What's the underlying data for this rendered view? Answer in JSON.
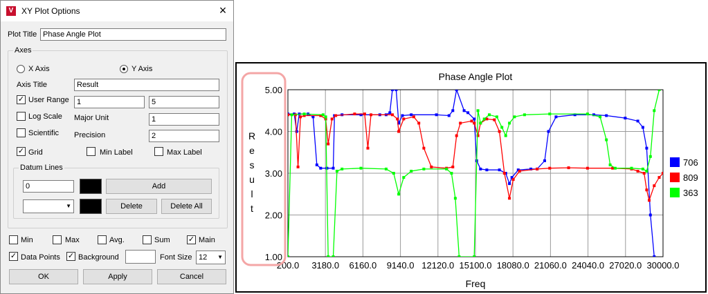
{
  "dialog": {
    "title": "XY Plot Options",
    "app_icon": "V",
    "close_icon": "×",
    "plot_title_label": "Plot Title",
    "plot_title_value": "Phase Angle Plot",
    "axes": {
      "legend": "Axes",
      "x_axis_label": "X Axis",
      "y_axis_label": "Y Axis",
      "selected_axis": "Y Axis",
      "axis_title_label": "Axis Title",
      "axis_title_value": "Result",
      "user_range_label": "User Range",
      "user_range_checked": true,
      "range_min": "1",
      "range_max": "5",
      "log_scale_label": "Log Scale",
      "log_scale_checked": false,
      "major_unit_label": "Major Unit",
      "major_unit_value": "1",
      "scientific_label": "Scientific",
      "scientific_checked": false,
      "precision_label": "Precision",
      "precision_value": "2",
      "grid_label": "Grid",
      "grid_checked": true,
      "min_label_label": "Min Label",
      "min_label_checked": false,
      "max_label_label": "Max Label",
      "max_label_checked": false,
      "datum": {
        "legend": "Datum Lines",
        "value": "0",
        "dropdown_value": "",
        "add_label": "Add",
        "delete_label": "Delete",
        "delete_all_label": "Delete All",
        "swatch_color": "#000000"
      }
    },
    "stats": {
      "min_label": "Min",
      "min_checked": false,
      "max_label": "Max",
      "max_checked": false,
      "avg_label": "Avg.",
      "avg_checked": false,
      "sum_label": "Sum",
      "sum_checked": false,
      "main_label": "Main",
      "main_checked": true
    },
    "data_points_label": "Data Points",
    "data_points_checked": true,
    "background_label": "Background",
    "background_checked": true,
    "font_size_label": "Font Size",
    "font_size_value": "12",
    "ok_label": "OK",
    "apply_label": "Apply",
    "cancel_label": "Cancel",
    "check_mark": "✓",
    "dropdown_icon": "▼"
  },
  "chart_data": {
    "type": "line",
    "title": "Phase Angle Plot",
    "xlabel": "Freq",
    "ylabel": "Result",
    "xlim": [
      200,
      30000
    ],
    "ylim": [
      1,
      5
    ],
    "x_ticks": [
      "200.0",
      "3180.0",
      "6160.0",
      "9140.0",
      "12120.0",
      "15100.0",
      "18080.0",
      "21060.0",
      "24040.0",
      "27020.0",
      "30000.0"
    ],
    "y_ticks": [
      "1.00",
      "2.00",
      "3.00",
      "4.00",
      "5.00"
    ],
    "grid": true,
    "legend_position": "right",
    "series": [
      {
        "name": "706",
        "color": "#0000ff",
        "points": [
          [
            200,
            4.42
          ],
          [
            700,
            4.42
          ],
          [
            900,
            4.0
          ],
          [
            1100,
            4.42
          ],
          [
            1800,
            4.42
          ],
          [
            2200,
            4.35
          ],
          [
            2500,
            3.2
          ],
          [
            2800,
            3.12
          ],
          [
            3300,
            3.12
          ],
          [
            3800,
            3.12
          ],
          [
            3900,
            4.38
          ],
          [
            4500,
            4.4
          ],
          [
            6000,
            4.4
          ],
          [
            7500,
            4.4
          ],
          [
            8000,
            4.4
          ],
          [
            8300,
            4.45
          ],
          [
            8500,
            5.0
          ],
          [
            8800,
            5.0
          ],
          [
            9000,
            4.2
          ],
          [
            9300,
            4.38
          ],
          [
            10000,
            4.4
          ],
          [
            12000,
            4.4
          ],
          [
            13000,
            4.38
          ],
          [
            13300,
            4.5
          ],
          [
            13600,
            5.0
          ],
          [
            14200,
            4.5
          ],
          [
            14500,
            4.45
          ],
          [
            15000,
            4.3
          ],
          [
            15200,
            3.3
          ],
          [
            15500,
            3.1
          ],
          [
            16000,
            3.08
          ],
          [
            17000,
            3.08
          ],
          [
            17500,
            3.0
          ],
          [
            17800,
            2.75
          ],
          [
            18000,
            2.9
          ],
          [
            18500,
            3.08
          ],
          [
            19500,
            3.1
          ],
          [
            20000,
            3.1
          ],
          [
            20600,
            3.3
          ],
          [
            20900,
            4.0
          ],
          [
            21500,
            4.35
          ],
          [
            23000,
            4.4
          ],
          [
            24500,
            4.4
          ],
          [
            25500,
            4.38
          ],
          [
            27000,
            4.32
          ],
          [
            28000,
            4.25
          ],
          [
            28400,
            4.1
          ],
          [
            28700,
            3.6
          ],
          [
            29000,
            2.0
          ],
          [
            29300,
            1.0
          ]
        ]
      },
      {
        "name": "809",
        "color": "#ff0000",
        "points": [
          [
            200,
            4.4
          ],
          [
            800,
            4.4
          ],
          [
            1000,
            3.15
          ],
          [
            1200,
            4.35
          ],
          [
            1500,
            4.38
          ],
          [
            2800,
            4.38
          ],
          [
            3200,
            4.3
          ],
          [
            3400,
            3.7
          ],
          [
            3700,
            4.3
          ],
          [
            4000,
            4.38
          ],
          [
            5500,
            4.42
          ],
          [
            6300,
            4.42
          ],
          [
            6550,
            3.6
          ],
          [
            6800,
            4.4
          ],
          [
            8500,
            4.4
          ],
          [
            8900,
            4.3
          ],
          [
            9000,
            4.0
          ],
          [
            9400,
            4.3
          ],
          [
            10200,
            4.35
          ],
          [
            10600,
            4.2
          ],
          [
            11000,
            3.6
          ],
          [
            11600,
            3.15
          ],
          [
            12800,
            3.12
          ],
          [
            13300,
            3.15
          ],
          [
            13600,
            3.9
          ],
          [
            13900,
            4.2
          ],
          [
            14800,
            4.25
          ],
          [
            15000,
            4.2
          ],
          [
            15300,
            3.9
          ],
          [
            15500,
            4.2
          ],
          [
            16000,
            4.3
          ],
          [
            16600,
            4.28
          ],
          [
            17000,
            4.0
          ],
          [
            17400,
            3.0
          ],
          [
            17800,
            2.4
          ],
          [
            18100,
            2.85
          ],
          [
            18600,
            3.05
          ],
          [
            20000,
            3.1
          ],
          [
            21000,
            3.12
          ],
          [
            22500,
            3.13
          ],
          [
            24000,
            3.12
          ],
          [
            26000,
            3.12
          ],
          [
            27500,
            3.1
          ],
          [
            28000,
            3.05
          ],
          [
            28500,
            3.0
          ],
          [
            28700,
            2.6
          ],
          [
            28900,
            2.35
          ],
          [
            29300,
            2.7
          ],
          [
            29700,
            2.9
          ],
          [
            30000,
            3.0
          ]
        ]
      },
      {
        "name": "363",
        "color": "#00ff00",
        "points": [
          [
            200,
            1.0
          ],
          [
            500,
            4.4
          ],
          [
            1500,
            4.42
          ],
          [
            3000,
            4.4
          ],
          [
            3200,
            4.35
          ],
          [
            3400,
            1.0
          ],
          [
            3800,
            1.0
          ],
          [
            4100,
            3.05
          ],
          [
            4500,
            3.1
          ],
          [
            6000,
            3.12
          ],
          [
            8000,
            3.1
          ],
          [
            8600,
            3.0
          ],
          [
            9000,
            2.5
          ],
          [
            9400,
            2.9
          ],
          [
            10000,
            3.05
          ],
          [
            11000,
            3.1
          ],
          [
            12800,
            3.1
          ],
          [
            13200,
            3.0
          ],
          [
            13500,
            2.4
          ],
          [
            13800,
            1.0
          ],
          [
            15000,
            1.0
          ],
          [
            15300,
            4.5
          ],
          [
            15500,
            4.2
          ],
          [
            15800,
            4.3
          ],
          [
            16200,
            4.4
          ],
          [
            16800,
            4.35
          ],
          [
            17200,
            4.1
          ],
          [
            17500,
            3.9
          ],
          [
            17800,
            4.2
          ],
          [
            18200,
            4.35
          ],
          [
            19000,
            4.4
          ],
          [
            21000,
            4.42
          ],
          [
            24000,
            4.42
          ],
          [
            25000,
            4.35
          ],
          [
            25500,
            3.8
          ],
          [
            25800,
            3.2
          ],
          [
            26200,
            3.12
          ],
          [
            27500,
            3.12
          ],
          [
            28400,
            3.1
          ],
          [
            28700,
            3.05
          ],
          [
            29000,
            3.4
          ],
          [
            29300,
            4.5
          ],
          [
            29700,
            5.0
          ]
        ]
      }
    ]
  }
}
